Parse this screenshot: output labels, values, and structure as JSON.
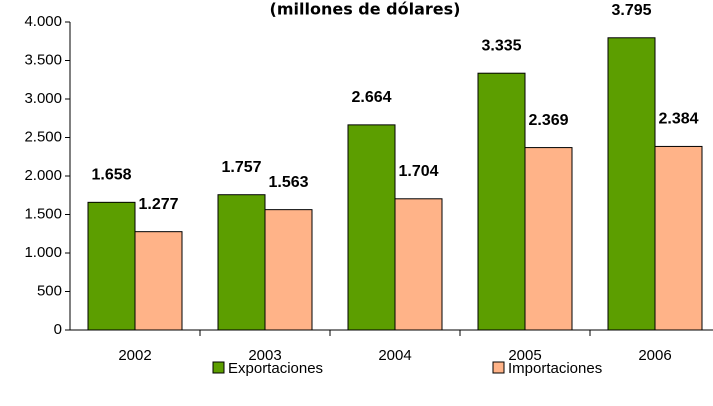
{
  "chart_data": {
    "type": "bar",
    "title": "(millones de dólares)",
    "categories": [
      "2002",
      "2003",
      "2004",
      "2005",
      "2006"
    ],
    "series": [
      {
        "name": "Exportaciones",
        "color": "#5c9e00",
        "values": [
          1658,
          1757,
          2664,
          3335,
          3795
        ],
        "value_labels": [
          "1.658",
          "1.757",
          "2.664",
          "3.335",
          "3.795"
        ]
      },
      {
        "name": "Importaciones",
        "color": "#ffb388",
        "values": [
          1277,
          1563,
          1704,
          2369,
          2384
        ],
        "value_labels": [
          "1.277",
          "1.563",
          "1.704",
          "2.369",
          "2.384"
        ]
      }
    ],
    "ylim": [
      0,
      4000
    ],
    "yticks": [
      0,
      500,
      {
        "value": 1000,
        "label": "1.000"
      },
      {
        "value": 1500,
        "label": "1.500"
      },
      {
        "value": 2000,
        "label": "2.000"
      },
      {
        "value": 2500,
        "label": "2.500"
      },
      {
        "value": 3000,
        "label": "3.000"
      },
      {
        "value": 3500,
        "label": "3.500"
      },
      {
        "value": 4000,
        "label": "4.000"
      }
    ],
    "legend": "bottom"
  }
}
